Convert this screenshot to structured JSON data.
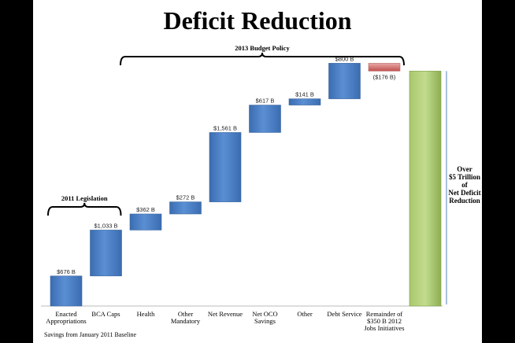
{
  "slide": {
    "title": "Deficit Reduction",
    "footnote": "Savings  from January 2011 Baseline"
  },
  "chart_data": {
    "type": "waterfall",
    "title": "Deficit Reduction",
    "unit": "$B",
    "categories": [
      [
        "Enacted",
        "Appropriations"
      ],
      [
        "BCA Caps"
      ],
      [
        "Health"
      ],
      [
        "Other",
        "Mandatory"
      ],
      [
        "Net Revenue"
      ],
      [
        "Net OCO",
        "Savings"
      ],
      [
        "Other"
      ],
      [
        "Debt Service"
      ],
      [
        "Remainder of",
        "$350 B 2012",
        "Jobs Initiatives"
      ]
    ],
    "values": [
      676,
      1033,
      362,
      272,
      1561,
      617,
      141,
      800,
      -176
    ],
    "data_labels": [
      "$676 B",
      "$1,033 B",
      "$362 B",
      "$272 B",
      "$1,561 B",
      "$617 B",
      "$141 B",
      "$800 B",
      "($176 B)"
    ],
    "total": {
      "lines": [
        "Over",
        "$5 Trillion",
        "of",
        "Net Deficit",
        "Reduction"
      ]
    },
    "brackets": [
      {
        "label": "2013  Budget Policy",
        "from": 2,
        "to": 8
      },
      {
        "label": "2011 Legislation",
        "from": 0,
        "to": 1
      }
    ],
    "colors": {
      "positive": "#4f81bd",
      "negative": "#d99594",
      "total": "#9bbb59"
    }
  }
}
